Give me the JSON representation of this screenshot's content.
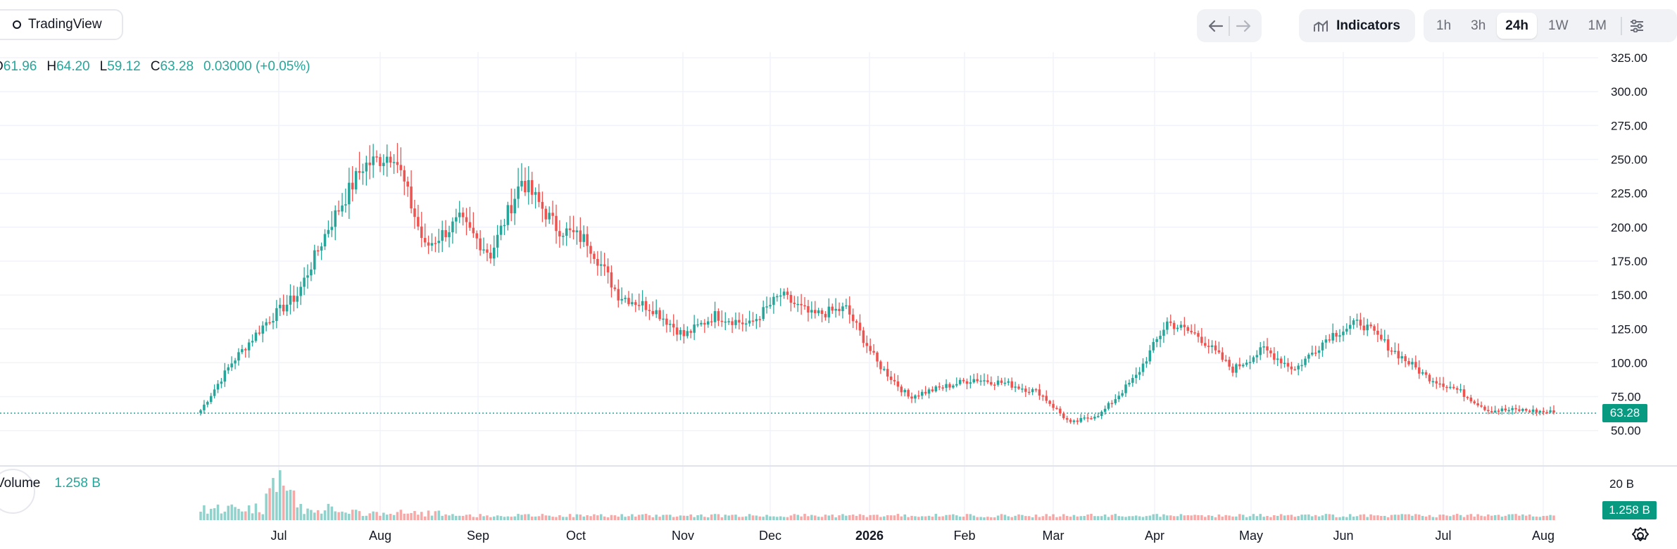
{
  "header": {
    "brand": "TradingView",
    "indicators_label": "Indicators",
    "timeframes": [
      "1h",
      "3h",
      "24h",
      "1W",
      "1M"
    ],
    "active_timeframe": "24h"
  },
  "legend": {
    "open_label": "O",
    "open": "61.96",
    "high_label": "H",
    "high": "64.20",
    "low_label": "L",
    "low": "59.12",
    "close_label": "C",
    "close": "63.28",
    "change": "0.03000 (+0.05%)"
  },
  "volume_legend": {
    "label": "Volume",
    "value": "1.258 B"
  },
  "price_axis": [
    "325.00",
    "300.00",
    "275.00",
    "250.00",
    "225.00",
    "200.00",
    "175.00",
    "150.00",
    "125.00",
    "100.00",
    "75.00",
    "50.00"
  ],
  "volume_axis_label": "20 B",
  "current_price": "63.28",
  "current_volume": "1.258 B",
  "time_axis": [
    "Jul",
    "Aug",
    "Sep",
    "Oct",
    "Nov",
    "Dec",
    "2026",
    "Feb",
    "Mar",
    "Apr",
    "May",
    "Jun",
    "Jul",
    "Aug"
  ],
  "colors": {
    "up": "#26a69a",
    "down": "#ef5350",
    "badge": "#089981"
  },
  "chart_data": {
    "type": "candlestick",
    "interval": "24h",
    "y_axis_range": [
      50,
      325
    ],
    "x_axis_range": [
      "Jun",
      "Aug"
    ],
    "grid": true,
    "keypoints": [
      {
        "t": "Jun",
        "close": 65
      },
      {
        "t": "Jun",
        "close": 100
      },
      {
        "t": "Jun",
        "close": 130
      },
      {
        "t": "Jun",
        "close": 150
      },
      {
        "t": "Jun",
        "close": 200
      },
      {
        "t": "Jun",
        "close": 245
      },
      {
        "t": "Jun",
        "close": 255
      },
      {
        "t": "Jul",
        "close": 185
      },
      {
        "t": "Jul",
        "close": 205
      },
      {
        "t": "Jul",
        "close": 180
      },
      {
        "t": "Jul",
        "close": 235
      },
      {
        "t": "Jul",
        "close": 200
      },
      {
        "t": "Aug",
        "close": 190
      },
      {
        "t": "Aug",
        "close": 150
      },
      {
        "t": "Aug",
        "close": 140
      },
      {
        "t": "Sep",
        "close": 120
      },
      {
        "t": "Sep",
        "close": 135
      },
      {
        "t": "Sep",
        "close": 128
      },
      {
        "t": "Oct",
        "close": 150
      },
      {
        "t": "Oct",
        "close": 135
      },
      {
        "t": "Oct",
        "close": 140
      },
      {
        "t": "Nov",
        "close": 100
      },
      {
        "t": "Nov",
        "close": 75
      },
      {
        "t": "Dec",
        "close": 82
      },
      {
        "t": "Dec",
        "close": 88
      },
      {
        "t": "2026",
        "close": 85
      },
      {
        "t": "2026",
        "close": 78
      },
      {
        "t": "Feb",
        "close": 55
      },
      {
        "t": "Feb",
        "close": 63
      },
      {
        "t": "Mar",
        "close": 90
      },
      {
        "t": "Mar",
        "close": 130
      },
      {
        "t": "Mar",
        "close": 120
      },
      {
        "t": "Apr",
        "close": 95
      },
      {
        "t": "Apr",
        "close": 110
      },
      {
        "t": "Apr",
        "close": 95
      },
      {
        "t": "May",
        "close": 120
      },
      {
        "t": "May",
        "close": 130
      },
      {
        "t": "Jun",
        "close": 110
      },
      {
        "t": "Jun",
        "close": 90
      },
      {
        "t": "Jun",
        "close": 80
      },
      {
        "t": "Jul",
        "close": 65
      },
      {
        "t": "Jul",
        "close": 65
      },
      {
        "t": "Aug",
        "close": 63.28
      }
    ]
  }
}
